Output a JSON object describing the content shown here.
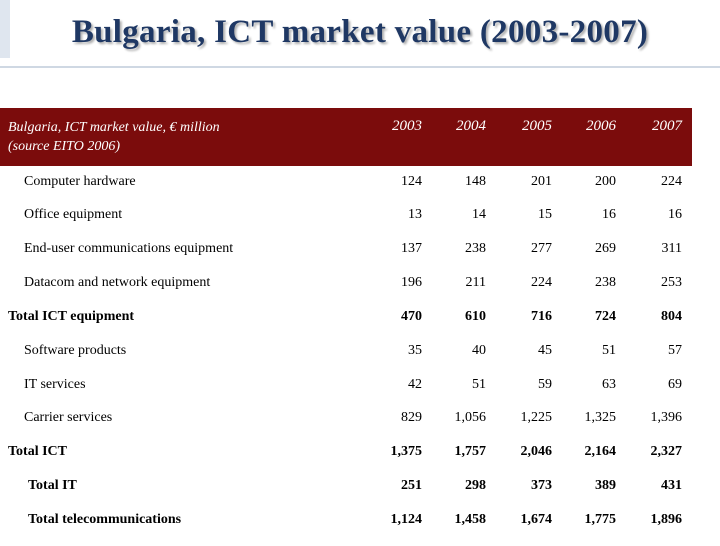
{
  "title": "Bulgaria, ICT market value (2003-2007)",
  "table": {
    "caption_line1": "Bulgaria, ICT market value, € million",
    "caption_line2": "(source EITO 2006)",
    "years": [
      "2003",
      "2004",
      "2005",
      "2006",
      "2007"
    ],
    "rows": [
      {
        "label": "Computer hardware",
        "values": [
          "124",
          "148",
          "201",
          "200",
          "224"
        ],
        "bold": false
      },
      {
        "label": "Office equipment",
        "values": [
          "13",
          "14",
          "15",
          "16",
          "16"
        ],
        "bold": false
      },
      {
        "label": "End-user communications equipment",
        "values": [
          "137",
          "238",
          "277",
          "269",
          "311"
        ],
        "bold": false
      },
      {
        "label": "Datacom and network equipment",
        "values": [
          "196",
          "211",
          "224",
          "238",
          "253"
        ],
        "bold": false
      },
      {
        "label": "Total ICT equipment",
        "values": [
          "470",
          "610",
          "716",
          "724",
          "804"
        ],
        "bold": true
      },
      {
        "label": "Software products",
        "values": [
          "35",
          "40",
          "45",
          "51",
          "57"
        ],
        "bold": false
      },
      {
        "label": "IT services",
        "values": [
          "42",
          "51",
          "59",
          "63",
          "69"
        ],
        "bold": false
      },
      {
        "label": "Carrier services",
        "values": [
          "829",
          "1,056",
          "1,225",
          "1,325",
          "1,396"
        ],
        "bold": false
      },
      {
        "label": "Total ICT",
        "values": [
          "1,375",
          "1,757",
          "2,046",
          "2,164",
          "2,327"
        ],
        "bold": true
      },
      {
        "label": "Total IT",
        "values": [
          "251",
          "298",
          "373",
          "389",
          "431"
        ],
        "bold": true
      },
      {
        "label": "Total telecommunications",
        "values": [
          "1,124",
          "1,458",
          "1,674",
          "1,775",
          "1,896"
        ],
        "bold": true
      }
    ]
  }
}
